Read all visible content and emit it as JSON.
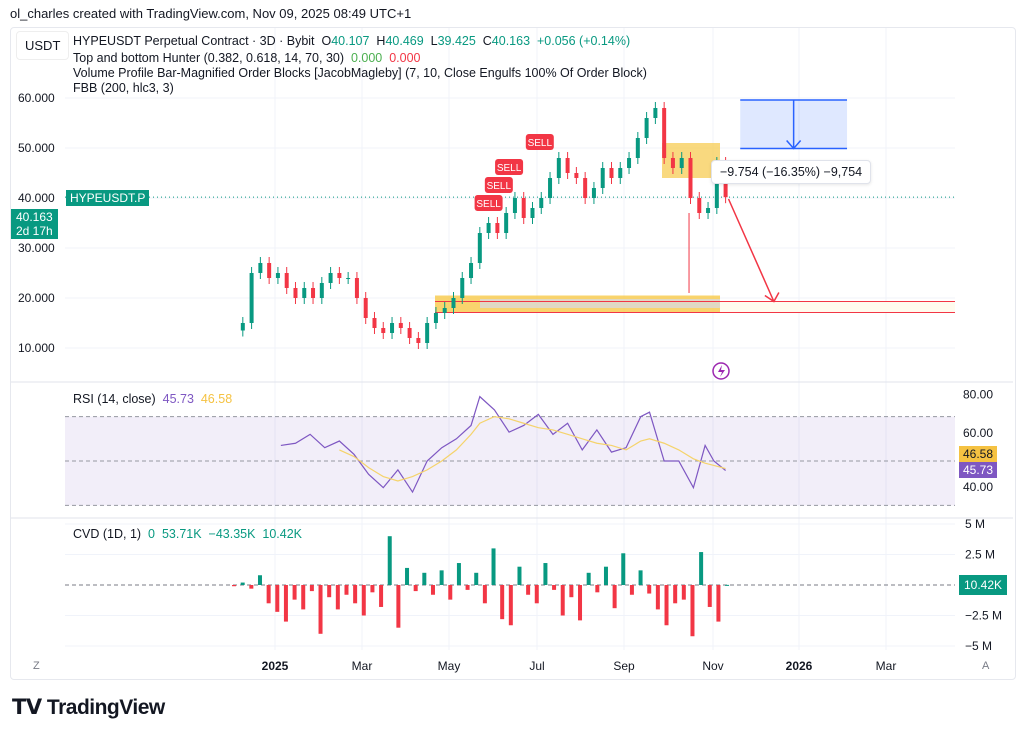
{
  "credit": "ol_charles created with TradingView.com, Nov 09, 2025 08:49 UTC+1",
  "currency": "USDT",
  "legend": {
    "symbol": "HYPEUSDT Perpetual Contract · 3D · Bybit",
    "o_label": "O",
    "o": "40.107",
    "h_label": "H",
    "h": "40.469",
    "l_label": "L",
    "l": "39.425",
    "c_label": "C",
    "c": "40.163",
    "change": "+0.056 (+0.14%)",
    "ind1": "Top and bottom Hunter (0.382, 0.618, 14, 70, 30)",
    "ind1_v1": "0.000",
    "ind1_v2": "0.000",
    "ind2": "Volume Profile Bar-Magnified Order Blocks [JacobMagleby] (7, 10, Close Engulfs 100% Of Order Block)",
    "ind3": "FBB (200, hlc3, 3)"
  },
  "price_label": {
    "value": "40.163",
    "countdown": "2d 17h",
    "symbol": "HYPEUSDT.P"
  },
  "measure_label": "−9.754 (−16.35%) −9,754",
  "sell_label": "SELL",
  "rsi": {
    "title": "RSI (14, close)",
    "value": "45.73",
    "ma": "46.58",
    "ticks": [
      "80.00",
      "60.00",
      "40.00"
    ]
  },
  "cvd": {
    "title": "CVD (1D, 1)",
    "v0": "0",
    "v1": "53.71K",
    "v2": "−43.35K",
    "v3": "10.42K",
    "ticks": [
      "5 M",
      "2.5 M",
      "−2.5 M",
      "−5 M"
    ]
  },
  "x_ticks": [
    "2025",
    "Mar",
    "May",
    "Jul",
    "Sep",
    "Nov",
    "2026",
    "Mar"
  ],
  "scale_buttons": {
    "left": "Z",
    "right": "A"
  },
  "brand": "TradingView",
  "colors": {
    "up": "#089981",
    "down": "#f23645",
    "rsi": "#7e57c2",
    "rsi_ma": "#f5d36b",
    "measure": "#2962ff"
  },
  "chart_data": [
    {
      "type": "candlestick",
      "title": "HYPEUSDT Perpetual Contract · 3D · Bybit",
      "y_ticks": [
        60,
        50,
        40,
        30,
        20,
        10
      ],
      "ylim": [
        5,
        65
      ],
      "grid": true,
      "x": [
        "2024-12-04",
        "2024-12-10",
        "2024-12-16",
        "2024-12-22",
        "2024-12-28",
        "2025-01-03",
        "2025-01-09",
        "2025-01-15",
        "2025-01-21",
        "2025-01-27",
        "2025-02-02",
        "2025-02-08",
        "2025-02-14",
        "2025-02-20",
        "2025-02-26",
        "2025-03-04",
        "2025-03-10",
        "2025-03-16",
        "2025-03-22",
        "2025-03-28",
        "2025-04-03",
        "2025-04-09",
        "2025-04-15",
        "2025-04-21",
        "2025-04-27",
        "2025-05-03",
        "2025-05-09",
        "2025-05-15",
        "2025-05-21",
        "2025-05-27",
        "2025-06-02",
        "2025-06-08",
        "2025-06-14",
        "2025-06-20",
        "2025-06-26",
        "2025-07-02",
        "2025-07-08",
        "2025-07-14",
        "2025-07-20",
        "2025-07-26",
        "2025-08-01",
        "2025-08-07",
        "2025-08-13",
        "2025-08-19",
        "2025-08-25",
        "2025-08-31",
        "2025-09-06",
        "2025-09-12",
        "2025-09-18",
        "2025-09-24",
        "2025-09-30",
        "2025-10-06",
        "2025-10-12",
        "2025-10-18",
        "2025-10-24",
        "2025-10-30",
        "2025-11-05"
      ],
      "close": [
        13.5,
        15,
        25,
        27,
        24,
        25,
        22,
        20,
        22,
        20,
        23,
        25,
        24,
        24,
        20,
        16,
        14,
        13,
        15,
        14,
        12,
        11,
        15,
        17,
        18,
        20,
        24,
        27,
        33,
        35,
        33,
        37,
        40,
        36,
        38,
        40,
        44,
        48,
        45,
        44,
        40,
        42,
        46,
        44,
        46,
        48,
        52,
        56,
        58,
        48,
        46,
        48,
        40,
        37,
        38,
        47,
        40.163
      ],
      "sell_signals": [
        {
          "date": "2025-05-27",
          "price": 38.8
        },
        {
          "date": "2025-06-03",
          "price": 41
        },
        {
          "date": "2025-06-10",
          "price": 43.5
        },
        {
          "date": "2025-07-01",
          "price": 51
        }
      ],
      "last_price": 40.163,
      "horizontal_lines": [
        19.3,
        17.1
      ],
      "projection": {
        "from": {
          "date": "2025-11-07",
          "price": 39.8
        },
        "to": {
          "date": "2025-12-08",
          "price": 19.3
        }
      },
      "measure_box": {
        "from_date": "2025-11-15",
        "to_date": "2026-01-27",
        "top": 59.6,
        "bottom": 49.9
      }
    },
    {
      "type": "line",
      "title": "RSI (14, close)",
      "ylim": [
        25,
        85
      ],
      "bands": [
        70,
        50,
        30
      ],
      "x": [
        "2025-01-05",
        "2025-01-15",
        "2025-01-25",
        "2025-02-04",
        "2025-02-14",
        "2025-02-24",
        "2025-03-06",
        "2025-03-16",
        "2025-03-26",
        "2025-04-05",
        "2025-04-15",
        "2025-04-25",
        "2025-05-05",
        "2025-05-15",
        "2025-05-21",
        "2025-05-31",
        "2025-06-10",
        "2025-06-20",
        "2025-06-30",
        "2025-07-10",
        "2025-07-20",
        "2025-07-30",
        "2025-08-09",
        "2025-08-19",
        "2025-08-29",
        "2025-09-08",
        "2025-09-14",
        "2025-09-24",
        "2025-10-04",
        "2025-10-14",
        "2025-10-22",
        "2025-10-28",
        "2025-11-05"
      ],
      "series": [
        {
          "name": "RSI",
          "values": [
            57,
            58,
            62,
            56,
            59,
            53,
            44,
            38,
            46,
            36,
            50,
            56,
            60,
            66,
            79,
            73,
            63,
            66,
            71,
            62,
            67,
            55,
            64,
            54,
            56,
            70,
            72,
            50,
            50,
            38,
            57,
            50,
            45.73
          ]
        },
        {
          "name": "MA",
          "values": [
            null,
            null,
            null,
            null,
            55,
            52,
            47,
            43,
            41,
            43,
            46,
            50,
            55,
            62,
            67,
            70,
            69,
            67,
            65,
            64,
            62,
            60,
            58,
            57,
            55,
            59,
            60,
            58,
            55,
            51,
            49,
            48,
            46.58
          ]
        }
      ]
    },
    {
      "type": "bar",
      "title": "CVD (1D, 1)",
      "ylim": [
        -5,
        5
      ],
      "unit": "M",
      "values": [
        -0.1,
        0.2,
        -0.3,
        0.8,
        -1.5,
        -2.2,
        -3,
        -1.2,
        -2,
        -0.5,
        -4,
        -1,
        -2,
        -0.8,
        -1.5,
        -2.5,
        -0.6,
        -1.8,
        4,
        -3.5,
        1.4,
        -0.5,
        1,
        -0.8,
        1.2,
        -1.2,
        1.8,
        -0.4,
        1,
        -1.5,
        3,
        -2.8,
        -3.3,
        1.5,
        -0.8,
        -1.5,
        1.8,
        -0.4,
        -2.5,
        -1,
        -2.9,
        1,
        -0.6,
        1.5,
        -1.9,
        2.6,
        -0.8,
        1.2,
        -0.7,
        -2,
        -3.3,
        -1.5,
        -1.2,
        -4.2,
        2.7,
        -1.8,
        -3,
        0.01
      ]
    }
  ]
}
